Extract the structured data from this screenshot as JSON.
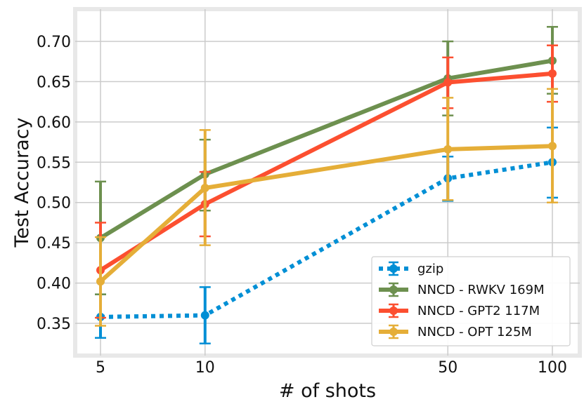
{
  "chart_data": {
    "type": "line",
    "title": "",
    "xlabel": "# of shots",
    "ylabel": "Test Accuracy",
    "x": [
      5,
      10,
      50,
      100
    ],
    "xscale": "log",
    "xticks": [
      "5",
      "10",
      "50",
      "100"
    ],
    "yticks": [
      "0.35",
      "0.40",
      "0.45",
      "0.50",
      "0.55",
      "0.60",
      "0.65",
      "0.70"
    ],
    "ylim": [
      0.31,
      0.74
    ],
    "grid": true,
    "legend_position": "bottom-right",
    "series": [
      {
        "name": "gzip",
        "color": "#008fd5",
        "style": "dotted",
        "values": [
          0.358,
          0.36,
          0.53,
          0.55
        ],
        "err_low": [
          0.332,
          0.325,
          0.502,
          0.506
        ],
        "err_high": [
          0.386,
          0.395,
          0.557,
          0.593
        ]
      },
      {
        "name": "NNCD - RWKV 169M",
        "color": "#6d904f",
        "style": "solid",
        "values": [
          0.456,
          0.535,
          0.654,
          0.676
        ],
        "err_low": [
          0.386,
          0.49,
          0.608,
          0.635
        ],
        "err_high": [
          0.526,
          0.578,
          0.7,
          0.718
        ]
      },
      {
        "name": "NNCD - GPT2 117M",
        "color": "#fc4f30",
        "style": "solid",
        "values": [
          0.416,
          0.498,
          0.649,
          0.66
        ],
        "err_low": [
          0.357,
          0.458,
          0.617,
          0.625
        ],
        "err_high": [
          0.475,
          0.538,
          0.68,
          0.695
        ]
      },
      {
        "name": "NNCD - OPT 125M",
        "color": "#e5ae38",
        "style": "solid",
        "values": [
          0.402,
          0.518,
          0.566,
          0.57
        ],
        "err_low": [
          0.347,
          0.447,
          0.503,
          0.5
        ],
        "err_high": [
          0.457,
          0.59,
          0.63,
          0.641
        ]
      }
    ]
  }
}
